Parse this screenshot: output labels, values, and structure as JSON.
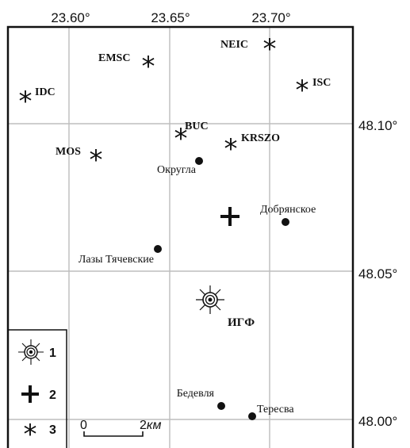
{
  "map": {
    "lon_ticks": [
      "23.60°",
      "23.65°",
      "23.70°"
    ],
    "lat_ticks": [
      "48.10°",
      "48.05°",
      "48.00°"
    ],
    "agencies": [
      {
        "id": "idc",
        "label": "IDC"
      },
      {
        "id": "emsc",
        "label": "EMSC"
      },
      {
        "id": "neic",
        "label": "NEIC"
      },
      {
        "id": "isc",
        "label": "ISC"
      },
      {
        "id": "mos",
        "label": "MOS"
      },
      {
        "id": "buc",
        "label": "BUC"
      },
      {
        "id": "krszo",
        "label": "KRSZO"
      }
    ],
    "settlements": [
      {
        "id": "okrugla",
        "label": "Округла"
      },
      {
        "id": "dobryanskoe",
        "label": "Добрянское"
      },
      {
        "id": "lazy",
        "label": "Лазы Тячевские"
      },
      {
        "id": "bedevlya",
        "label": "Бедевля"
      },
      {
        "id": "teresva",
        "label": "Тересва"
      }
    ],
    "igf_label": "ИГФ",
    "legend": [
      {
        "num": "1",
        "icon": "sun-target-icon"
      },
      {
        "num": "2",
        "icon": "cross-icon"
      },
      {
        "num": "3",
        "icon": "asterisk-icon"
      }
    ],
    "scale": {
      "zero": "0",
      "value": "2",
      "unit": "км"
    }
  }
}
